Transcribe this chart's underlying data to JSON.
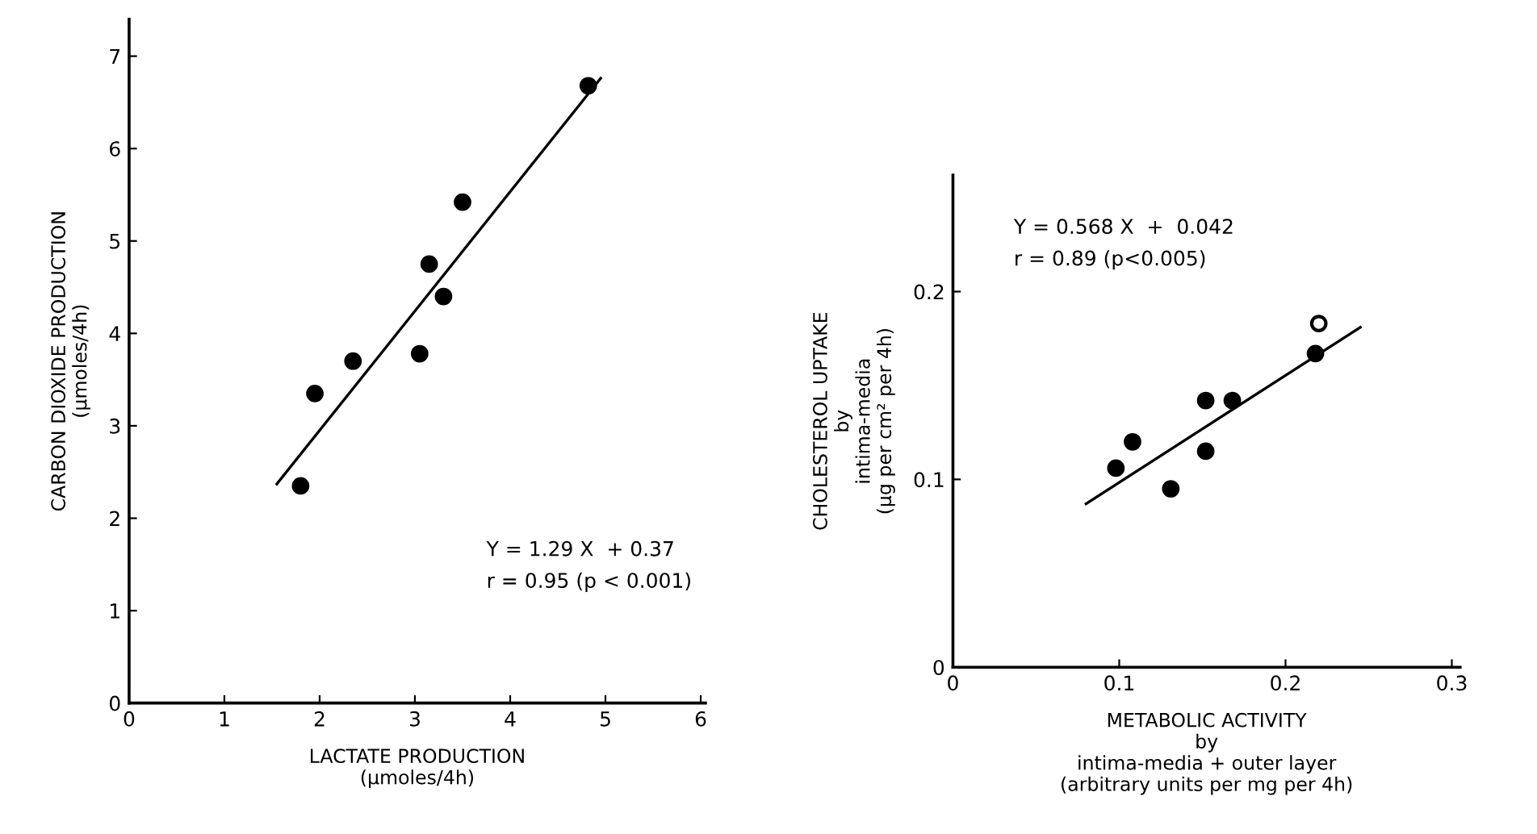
{
  "chart_data": [
    {
      "type": "scatter",
      "xlabel": "LACTATE PRODUCTION\n(µmoles/4h)",
      "ylabel": "CARBON DIOXIDE PRODUCTION\n(µmoles/4h)",
      "x": [
        1.8,
        1.95,
        2.35,
        3.05,
        3.15,
        3.3,
        3.5,
        4.82
      ],
      "series": [
        {
          "color": "#000000",
          "marker": "circle",
          "values": [
            2.35,
            3.35,
            3.7,
            3.78,
            4.75,
            4.4,
            5.42,
            6.68
          ]
        },
        {
          "type": "line",
          "marker": "none",
          "color": "#000000",
          "x": [
            1.55,
            4.95
          ],
          "values": [
            2.37,
            6.76
          ]
        }
      ],
      "xlim": [
        0,
        6.05
      ],
      "ylim": [
        0,
        7.4
      ],
      "xticks": [
        0,
        1,
        2,
        3,
        4,
        5,
        6
      ],
      "yticks": [
        0,
        1,
        2,
        3,
        4,
        5,
        6,
        7
      ],
      "annotations": [
        "Y = 1.29 X  + 0.37\nr = 0.95 (p < 0.001)"
      ],
      "grid": false,
      "legend": false
    },
    {
      "type": "scatter",
      "xlabel": "METABOLIC ACTIVITY\nby\nintima-media + outer layer\n(arbitrary units per mg per 4h)",
      "ylabel": "CHOLESTEROL UPTAKE\nby\nintima-media\n(µg per cm² per 4h)",
      "x": [
        0.098,
        0.108,
        0.131,
        0.152,
        0.152,
        0.168,
        0.218,
        0.22
      ],
      "series": [
        {
          "marker": "circle",
          "colors": [
            "#000000",
            "#000000",
            "#000000",
            "#000000",
            "#000000",
            "#000000",
            "#000000",
            "#ffffff"
          ],
          "values": [
            0.106,
            0.12,
            0.095,
            0.142,
            0.115,
            0.142,
            0.167,
            0.183
          ]
        },
        {
          "type": "line",
          "marker": "none",
          "color": "#000000",
          "x": [
            0.08,
            0.245
          ],
          "values": [
            0.087,
            0.181
          ]
        }
      ],
      "xlim": [
        0,
        0.305
      ],
      "ylim": [
        0,
        0.262
      ],
      "xticks": [
        0,
        0.1,
        0.2,
        0.3
      ],
      "yticks": [
        0,
        0.1,
        0.2
      ],
      "annotations": [
        "Y = 0.568 X  +  0.042\nr = 0.89 (p<0.005)"
      ],
      "grid": false,
      "legend": false
    }
  ]
}
